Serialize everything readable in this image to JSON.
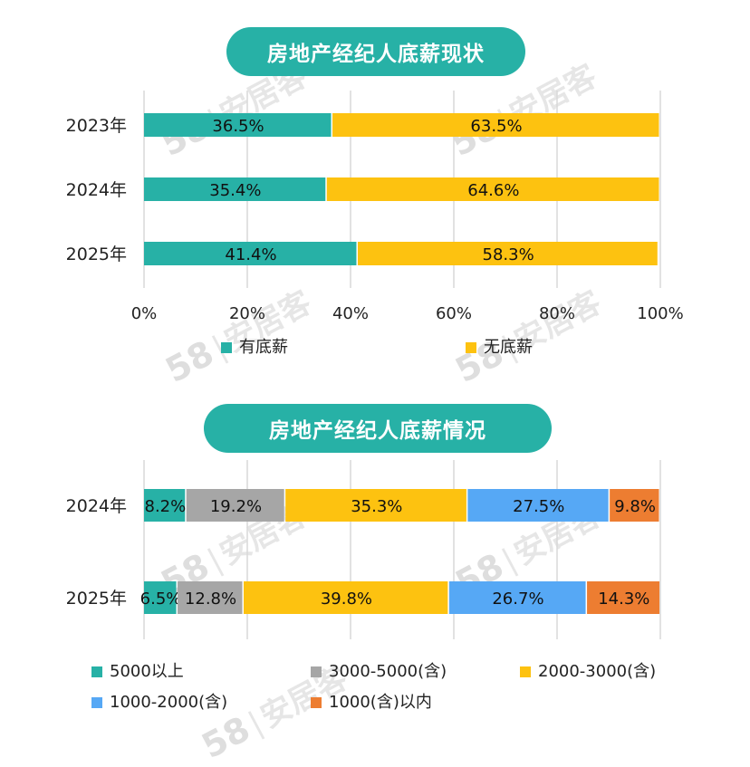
{
  "charts": [
    {
      "title": "房地产经纪人底薪现状",
      "chart_data": {
        "type": "bar",
        "orientation": "horizontal",
        "stacked": true,
        "title": "房地产经纪人底薪现状",
        "categories": [
          "2023年",
          "2024年",
          "2025年"
        ],
        "series": [
          {
            "name": "有底薪",
            "color": "#27b1a6",
            "values": [
              36.5,
              35.4,
              41.4
            ],
            "labels": [
              "36.5%",
              "35.4%",
              "41.4%"
            ]
          },
          {
            "name": "无底薪",
            "color": "#fdc210",
            "values": [
              63.5,
              64.6,
              58.3
            ],
            "labels": [
              "63.5%",
              "64.6%",
              "58.3%"
            ]
          }
        ],
        "xlim": [
          0,
          100
        ],
        "xticks": [
          "0%",
          "20%",
          "40%",
          "60%",
          "80%",
          "100%"
        ],
        "grid": "vertical",
        "legend_position": "bottom"
      }
    },
    {
      "title": "房地产经纪人底薪情况",
      "chart_data": {
        "type": "bar",
        "orientation": "horizontal",
        "stacked": true,
        "title": "房地产经纪人底薪情况",
        "categories": [
          "2024年",
          "2025年"
        ],
        "series": [
          {
            "name": "5000以上",
            "color": "#27b1a6",
            "values": [
              8.2,
              6.5
            ],
            "labels": [
              "8.2%",
              "6.5%"
            ]
          },
          {
            "name": "3000-5000(含)",
            "color": "#a6a6a6",
            "values": [
              19.2,
              12.8
            ],
            "labels": [
              "19.2%",
              "12.8%"
            ]
          },
          {
            "name": "2000-3000(含)",
            "color": "#fdc210",
            "values": [
              35.3,
              39.8
            ],
            "labels": [
              "35.3%",
              "39.8%"
            ]
          },
          {
            "name": "1000-2000(含)",
            "color": "#56a8f5",
            "values": [
              27.5,
              26.7
            ],
            "labels": [
              "27.5%",
              "26.7%"
            ]
          },
          {
            "name": "1000(含)以内",
            "color": "#ed7d31",
            "values": [
              9.8,
              14.3
            ],
            "labels": [
              "9.8%",
              "14.3%"
            ]
          }
        ],
        "xlim": [
          0,
          100
        ],
        "grid": "vertical",
        "legend_position": "bottom"
      }
    }
  ],
  "watermark": {
    "digits": "58",
    "text": "安居客"
  }
}
